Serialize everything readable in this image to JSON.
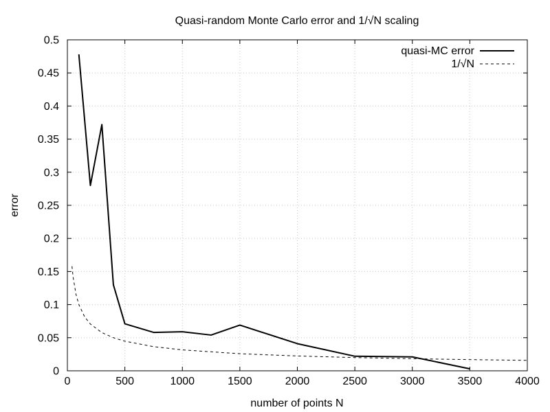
{
  "chart_data": {
    "type": "line",
    "title": "Quasi-random Monte Carlo error and 1/√N scaling",
    "xlabel": "number of points N",
    "ylabel": "error",
    "xlim": [
      0,
      4000
    ],
    "ylim": [
      0,
      0.5
    ],
    "x_ticks": [
      0,
      500,
      1000,
      1500,
      2000,
      2500,
      3000,
      3500,
      4000
    ],
    "y_ticks": [
      0,
      0.05,
      0.1,
      0.15,
      0.2,
      0.25,
      0.3,
      0.35,
      0.4,
      0.45,
      0.5
    ],
    "grid": true,
    "legend_position": "top-right",
    "series": [
      {
        "name": "quasi-MC error",
        "style": "solid",
        "color": "#000000",
        "x": [
          100,
          200,
          300,
          400,
          500,
          750,
          1000,
          1250,
          1500,
          2000,
          2500,
          3000,
          3500
        ],
        "y": [
          0.478,
          0.28,
          0.372,
          0.13,
          0.071,
          0.058,
          0.059,
          0.054,
          0.069,
          0.041,
          0.022,
          0.021,
          0.003
        ]
      },
      {
        "name": "1/√N",
        "style": "dashed",
        "color": "#000000",
        "function": "1/sqrt(N)",
        "x": [
          40,
          50,
          75,
          100,
          150,
          200,
          300,
          400,
          500,
          750,
          1000,
          1500,
          2000,
          2500,
          3000,
          3500,
          4000
        ],
        "y": [
          0.158,
          0.1414,
          0.1155,
          0.1,
          0.0816,
          0.0707,
          0.0577,
          0.05,
          0.0447,
          0.0365,
          0.0316,
          0.0258,
          0.0224,
          0.02,
          0.0183,
          0.0169,
          0.0158
        ]
      }
    ]
  }
}
